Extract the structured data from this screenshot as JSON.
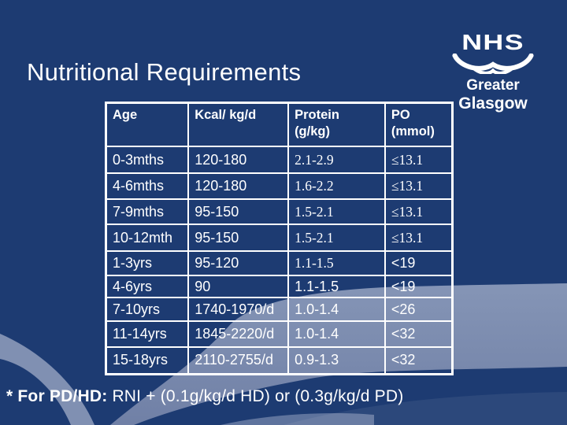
{
  "slide": {
    "title": "Nutritional Requirements",
    "footnote_bold": "* For PD/HD:",
    "footnote_rest": " RNI + (0.1g/kg/d HD) or (0.3g/kg/d PD)"
  },
  "logo": {
    "nhs": "NHS",
    "region_line1": "Greater",
    "region_line2": "Glasgow",
    "wings_icon": "nhs-wings-icon"
  },
  "colors": {
    "background": "#1d3b72",
    "swoosh_light": "#7e8eb0",
    "table_border": "#ffffff",
    "text": "#ffffff"
  },
  "table": {
    "headers": [
      {
        "lines": [
          "Age"
        ]
      },
      {
        "lines": [
          "Kcal/ kg/d"
        ]
      },
      {
        "lines": [
          "Protein",
          "(g/kg)"
        ]
      },
      {
        "lines": [
          "PO",
          "(mmol)"
        ]
      }
    ],
    "rows": [
      [
        {
          "text": "0-3mths",
          "font": "sans"
        },
        {
          "text": "120-180",
          "font": "sans"
        },
        {
          "text": "2.1-2.9",
          "font": "serif"
        },
        {
          "text": "≤13.1",
          "font": "serif"
        }
      ],
      [
        {
          "text": "4-6mths",
          "font": "sans"
        },
        {
          "text": "120-180",
          "font": "sans"
        },
        {
          "text": "1.6-2.2",
          "font": "serif"
        },
        {
          "text": "≤13.1",
          "font": "serif"
        }
      ],
      [
        {
          "text": "7-9mths",
          "font": "sans"
        },
        {
          "text": "95-150",
          "font": "sans"
        },
        {
          "text": "1.5-2.1",
          "font": "serif"
        },
        {
          "text": "≤13.1",
          "font": "serif"
        }
      ],
      [
        {
          "text": "10-12mth",
          "font": "sans"
        },
        {
          "text": "95-150",
          "font": "sans"
        },
        {
          "text": "1.5-2.1",
          "font": "serif"
        },
        {
          "text": "≤13.1",
          "font": "serif"
        }
      ],
      [
        {
          "text": "1-3yrs",
          "font": "sans"
        },
        {
          "text": "95-120",
          "font": "sans"
        },
        {
          "text": "1.1-1.5",
          "font": "serif"
        },
        {
          "text": "<19",
          "font": "sans"
        }
      ],
      [
        {
          "text": "4-6yrs",
          "font": "sans"
        },
        {
          "text": "90",
          "font": "sans"
        },
        {
          "text": "1.1-1.5",
          "font": "sans"
        },
        {
          "text": "<19",
          "font": "sans"
        }
      ],
      [
        {
          "text": "7-10yrs",
          "font": "sans"
        },
        {
          "text": "1740-1970/d",
          "font": "sans"
        },
        {
          "text": "1.0-1.4",
          "font": "sans"
        },
        {
          "text": "<26",
          "font": "sans"
        }
      ],
      [
        {
          "text": "11-14yrs",
          "font": "sans"
        },
        {
          "text": "1845-2220/d",
          "font": "sans"
        },
        {
          "text": "1.0-1.4",
          "font": "sans"
        },
        {
          "text": "<32",
          "font": "sans"
        }
      ],
      [
        {
          "text": "15-18yrs",
          "font": "sans"
        },
        {
          "text": "2110-2755/d",
          "font": "sans"
        },
        {
          "text": "0.9-1.3",
          "font": "sans"
        },
        {
          "text": "<32",
          "font": "sans"
        }
      ]
    ]
  }
}
